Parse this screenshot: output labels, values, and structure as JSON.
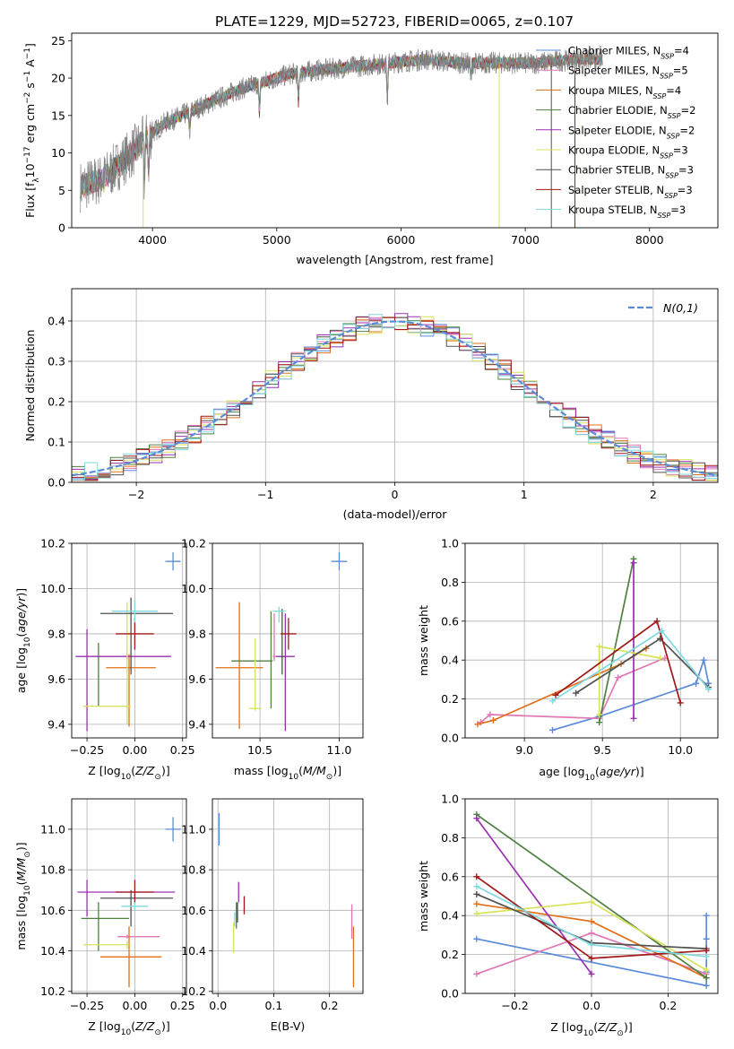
{
  "figure_title": "PLATE=1229, MJD=52723, FIBERID=0065, z=0.107",
  "palette": {
    "chab_miles": "#5b8bd8",
    "salp_miles": "#e078b4",
    "krou_miles": "#e0701a",
    "chab_elodie": "#4e8040",
    "salp_elodie": "#9a30b0",
    "krou_elodie": "#d8e25a",
    "chab_stelib": "#505050",
    "salp_stelib": "#a01818",
    "krou_stelib": "#80d8e0",
    "spectrum": "#808080",
    "normal": "#5b8bd8",
    "grid": "#b0b0b0"
  },
  "chart_data": [
    {
      "id": "spectrum",
      "type": "line",
      "xlabel": "wavelength [Angstrom, rest frame]",
      "ylabel": "Flux [f_λ 10^-17 erg cm^-2 s^-1 A^-1]",
      "xlim": [
        3350,
        8550
      ],
      "ylim": [
        0,
        26
      ],
      "xticks": [
        4000,
        5000,
        6000,
        7000,
        8000
      ],
      "yticks": [
        0,
        5,
        10,
        15,
        20,
        25
      ],
      "grid": false,
      "legend_position": "right",
      "continuum_knots": {
        "x": [
          3420,
          3600,
          3800,
          3950,
          4100,
          4300,
          4500,
          4700,
          4900,
          5100,
          5300,
          5600,
          5900,
          6200,
          6500,
          6800,
          7100,
          7400,
          7600
        ],
        "y": [
          5.5,
          6.5,
          9.5,
          12,
          14,
          15.5,
          17,
          18.5,
          19.5,
          20.5,
          21,
          21.5,
          22,
          22.5,
          22,
          22,
          22,
          22.5,
          22.5
        ]
      },
      "absorption_features": [
        {
          "wavelength": 3934,
          "depth": 6
        },
        {
          "wavelength": 3969,
          "depth": 5
        },
        {
          "wavelength": 4300,
          "depth": 3
        },
        {
          "wavelength": 4861,
          "depth": 4
        },
        {
          "wavelength": 5175,
          "depth": 4
        },
        {
          "wavelength": 5890,
          "depth": 5
        },
        {
          "wavelength": 6563,
          "depth": 2
        }
      ],
      "model_dropouts": [
        {
          "wavelength": 3925,
          "series": "Kroupa ELODIE, N_SSP=3"
        },
        {
          "wavelength": 6790,
          "series": "Kroupa ELODIE, N_SSP=3"
        },
        {
          "wavelength": 7210,
          "series": "Chabrier STELIB, N_SSP=3"
        },
        {
          "wavelength": 7400,
          "series": "Salpeter STELIB, N_SSP=3"
        }
      ],
      "legend": [
        {
          "label": "Chabrier MILES, N_SSP=4",
          "color": "#5b8bd8"
        },
        {
          "label": "Salpeter MILES, N_SSP=5",
          "color": "#e078b4"
        },
        {
          "label": "Kroupa MILES, N_SSP=4",
          "color": "#e0701a"
        },
        {
          "label": "Chabrier ELODIE, N_SSP=2",
          "color": "#4e8040"
        },
        {
          "label": "Salpeter ELODIE, N_SSP=2",
          "color": "#9a30b0"
        },
        {
          "label": "Kroupa ELODIE, N_SSP=3",
          "color": "#d8e25a"
        },
        {
          "label": "Chabrier STELIB, N_SSP=3",
          "color": "#505050"
        },
        {
          "label": "Salpeter STELIB, N_SSP=3",
          "color": "#a01818"
        },
        {
          "label": "Kroupa STELIB, N_SSP=3",
          "color": "#80d8e0"
        }
      ]
    },
    {
      "id": "residuals",
      "type": "histogram",
      "xlabel": "(data-model)/error",
      "ylabel": "Normed distribution",
      "xlim": [
        -2.5,
        2.5
      ],
      "ylim": [
        0,
        0.48
      ],
      "xticks": [
        -2,
        -1,
        0,
        1,
        2
      ],
      "yticks": [
        0.0,
        0.1,
        0.2,
        0.3,
        0.4
      ],
      "grid": true,
      "bin_width": 0.1,
      "legend": "N(0,1)",
      "legend_position": "top-right"
    },
    {
      "id": "age_vs_Z",
      "type": "errorbar",
      "xlabel": "Z [log10(Z/Z⊙)]",
      "ylabel": "age [log10(age/yr)]",
      "xlim": [
        -0.33,
        0.27
      ],
      "ylim": [
        9.34,
        10.2
      ],
      "xticks": [
        -0.25,
        0.0,
        0.25
      ],
      "yticks": [
        9.4,
        9.6,
        9.8,
        10.0,
        10.2
      ],
      "grid": true,
      "points": [
        {
          "color": "#5b8bd8",
          "x": 0.2,
          "y": 10.12,
          "xerr": [
            0.04,
            0.04
          ],
          "yerr": [
            0.04,
            0.04
          ]
        },
        {
          "color": "#e078b4",
          "x": -0.04,
          "y": 9.7,
          "xerr": [
            0.01,
            0.01
          ],
          "yerr": [
            0.02,
            0.02
          ]
        },
        {
          "color": "#e0701a",
          "x": -0.03,
          "y": 9.65,
          "xerr": [
            0.12,
            0.14
          ],
          "yerr": [
            0.26,
            0.06
          ]
        },
        {
          "color": "#4e8040",
          "x": -0.19,
          "y": 9.7,
          "xerr": [
            0.01,
            0.01
          ],
          "yerr": [
            0.22,
            0.06
          ]
        },
        {
          "color": "#9a30b0",
          "x": -0.25,
          "y": 9.7,
          "xerr": [
            0.06,
            0.44
          ],
          "yerr": [
            0.33,
            0.12
          ]
        },
        {
          "color": "#d8e25a",
          "x": -0.04,
          "y": 9.48,
          "xerr": [
            0.23,
            0.02
          ],
          "yerr": [
            0.08,
            0.46
          ]
        },
        {
          "color": "#505050",
          "x": -0.02,
          "y": 9.89,
          "xerr": [
            0.16,
            0.22
          ],
          "yerr": [
            0.27,
            0.07
          ]
        },
        {
          "color": "#a01818",
          "x": 0.0,
          "y": 9.8,
          "xerr": [
            0.1,
            0.1
          ],
          "yerr": [
            0.07,
            0.07
          ]
        },
        {
          "color": "#80d8e0",
          "x": 0.0,
          "y": 9.9,
          "xerr": [
            0.12,
            0.12
          ],
          "yerr": [
            0.05,
            0.05
          ]
        }
      ]
    },
    {
      "id": "age_vs_mass",
      "type": "errorbar",
      "xlabel": "mass [log10(M/M⊙)]",
      "ylabel": "",
      "xlim": [
        10.2,
        11.15
      ],
      "ylim": [
        9.34,
        10.2
      ],
      "xticks": [
        10.5,
        11.0
      ],
      "yticks": [
        9.4,
        9.6,
        9.8,
        10.0,
        10.2
      ],
      "grid": true,
      "points": [
        {
          "color": "#5b8bd8",
          "x": 11.0,
          "y": 10.12,
          "xerr": [
            0.05,
            0.05
          ],
          "yerr": [
            0.04,
            0.04
          ]
        },
        {
          "color": "#e078b4",
          "x": 10.59,
          "y": 9.7,
          "xerr": [
            0.01,
            0.01
          ],
          "yerr": [
            0.02,
            0.19
          ]
        },
        {
          "color": "#e0701a",
          "x": 10.37,
          "y": 9.65,
          "xerr": [
            0.15,
            0.15
          ],
          "yerr": [
            0.27,
            0.29
          ]
        },
        {
          "color": "#4e8040",
          "x": 10.57,
          "y": 9.68,
          "xerr": [
            0.25,
            0.01
          ],
          "yerr": [
            0.21,
            0.22
          ]
        },
        {
          "color": "#9a30b0",
          "x": 10.66,
          "y": 9.7,
          "xerr": [
            0.06,
            0.06
          ],
          "yerr": [
            0.33,
            0.19
          ]
        },
        {
          "color": "#d8e25a",
          "x": 10.47,
          "y": 9.47,
          "xerr": [
            0.04,
            0.04
          ],
          "yerr": [
            0.01,
            0.31
          ]
        },
        {
          "color": "#505050",
          "x": 10.64,
          "y": 9.7,
          "xerr": [
            0.01,
            0.01
          ],
          "yerr": [
            0.08,
            0.21
          ]
        },
        {
          "color": "#a01818",
          "x": 10.68,
          "y": 9.8,
          "xerr": [
            0.05,
            0.05
          ],
          "yerr": [
            0.07,
            0.07
          ]
        },
        {
          "color": "#80d8e0",
          "x": 10.62,
          "y": 9.9,
          "xerr": [
            0.04,
            0.04
          ],
          "yerr": [
            0.05,
            0.02
          ]
        }
      ]
    },
    {
      "id": "massweight_vs_age",
      "type": "line",
      "xlabel": "age [log10(age/yr)]",
      "ylabel": "mass weight",
      "xlim": [
        8.62,
        10.24
      ],
      "ylim": [
        0,
        1.0
      ],
      "xticks": [
        9.0,
        9.5,
        10.0
      ],
      "yticks": [
        0.0,
        0.2,
        0.4,
        0.6,
        0.8,
        1.0
      ],
      "grid": true,
      "series": [
        {
          "color": "#5b8bd8",
          "x": [
            9.18,
            9.48,
            10.1,
            10.15,
            10.18
          ],
          "y": [
            0.04,
            0.11,
            0.28,
            0.4,
            0.28
          ]
        },
        {
          "color": "#e078b4",
          "x": [
            8.72,
            8.78,
            9.48,
            9.6,
            9.9
          ],
          "y": [
            0.08,
            0.12,
            0.1,
            0.31,
            0.41
          ]
        },
        {
          "color": "#e0701a",
          "x": [
            8.7,
            8.8,
            9.62,
            9.78
          ],
          "y": [
            0.07,
            0.09,
            0.38,
            0.46
          ]
        },
        {
          "color": "#4e8040",
          "x": [
            9.48,
            9.7
          ],
          "y": [
            0.08,
            0.92
          ]
        },
        {
          "color": "#9a30b0",
          "x": [
            9.7,
            9.7
          ],
          "y": [
            0.1,
            0.9
          ]
        },
        {
          "color": "#d8e25a",
          "x": [
            9.48,
            9.48,
            9.87
          ],
          "y": [
            0.12,
            0.47,
            0.41
          ]
        },
        {
          "color": "#505050",
          "x": [
            9.33,
            9.87,
            10.18
          ],
          "y": [
            0.23,
            0.51,
            0.26
          ]
        },
        {
          "color": "#a01818",
          "x": [
            9.2,
            9.85,
            10.0
          ],
          "y": [
            0.22,
            0.6,
            0.18
          ]
        },
        {
          "color": "#80d8e0",
          "x": [
            9.18,
            9.88,
            10.18
          ],
          "y": [
            0.19,
            0.55,
            0.25
          ]
        }
      ]
    },
    {
      "id": "mass_vs_Z",
      "type": "errorbar",
      "xlabel": "Z [log10(Z/Z⊙)]",
      "ylabel": "mass [log10(M/M⊙)]",
      "xlim": [
        -0.33,
        0.27
      ],
      "ylim": [
        10.19,
        11.15
      ],
      "xticks": [
        -0.25,
        0.0,
        0.25
      ],
      "yticks": [
        10.2,
        10.4,
        10.6,
        10.8,
        11.0
      ],
      "grid": true,
      "points": [
        {
          "color": "#5b8bd8",
          "x": 0.2,
          "y": 11.0,
          "xerr": [
            0.04,
            0.04
          ],
          "yerr": [
            0.06,
            0.06
          ]
        },
        {
          "color": "#e078b4",
          "x": -0.04,
          "y": 10.47,
          "xerr": [
            0.05,
            0.17
          ],
          "yerr": [
            0.01,
            0.01
          ]
        },
        {
          "color": "#e0701a",
          "x": -0.03,
          "y": 10.37,
          "xerr": [
            0.15,
            0.17
          ],
          "yerr": [
            0.15,
            0.15
          ]
        },
        {
          "color": "#4e8040",
          "x": -0.19,
          "y": 10.56,
          "xerr": [
            0.09,
            0.16
          ],
          "yerr": [
            0.16,
            0.08
          ]
        },
        {
          "color": "#9a30b0",
          "x": -0.25,
          "y": 10.69,
          "xerr": [
            0.05,
            0.46
          ],
          "yerr": [
            0.12,
            0.06
          ]
        },
        {
          "color": "#d8e25a",
          "x": -0.04,
          "y": 10.43,
          "xerr": [
            0.23,
            0.02
          ],
          "yerr": [
            0.02,
            0.02
          ]
        },
        {
          "color": "#505050",
          "x": -0.02,
          "y": 10.66,
          "xerr": [
            0.16,
            0.22
          ],
          "yerr": [
            0.14,
            0.04
          ]
        },
        {
          "color": "#a01818",
          "x": 0.0,
          "y": 10.69,
          "xerr": [
            0.1,
            0.1
          ],
          "yerr": [
            0.06,
            0.06
          ]
        },
        {
          "color": "#80d8e0",
          "x": 0.0,
          "y": 10.62,
          "xerr": [
            0.07,
            0.07
          ],
          "yerr": [
            0.02,
            0.02
          ]
        }
      ]
    },
    {
      "id": "mass_vs_ebv",
      "type": "errorbar",
      "xlabel": "E(B-V)",
      "ylabel": "",
      "xlim": [
        -0.01,
        0.26
      ],
      "ylim": [
        10.19,
        11.15
      ],
      "xticks": [
        0.0,
        0.1,
        0.2
      ],
      "yticks": [
        10.2,
        10.4,
        10.6,
        10.8,
        11.0
      ],
      "grid": true,
      "points": [
        {
          "color": "#5b8bd8",
          "x": 0.002,
          "y": 11.0,
          "xerr": [
            0.0,
            0.0
          ],
          "yerr": [
            0.08,
            0.08
          ]
        },
        {
          "color": "#e078b4",
          "x": 0.24,
          "y": 10.47,
          "xerr": [
            0.0,
            0.0
          ],
          "yerr": [
            0.01,
            0.16
          ]
        },
        {
          "color": "#e0701a",
          "x": 0.243,
          "y": 10.37,
          "xerr": [
            0.0,
            0.0
          ],
          "yerr": [
            0.15,
            0.15
          ]
        },
        {
          "color": "#4e8040",
          "x": 0.033,
          "y": 10.56,
          "xerr": [
            0.0,
            0.0
          ],
          "yerr": [
            0.05,
            0.08
          ]
        },
        {
          "color": "#9a30b0",
          "x": 0.037,
          "y": 10.68,
          "xerr": [
            0.0,
            0.0
          ],
          "yerr": [
            0.04,
            0.06
          ]
        },
        {
          "color": "#d8e25a",
          "x": 0.028,
          "y": 10.45,
          "xerr": [
            0.0,
            0.0
          ],
          "yerr": [
            0.06,
            0.09
          ]
        },
        {
          "color": "#505050",
          "x": 0.035,
          "y": 10.6,
          "xerr": [
            0.0,
            0.0
          ],
          "yerr": [
            0.06,
            0.04
          ]
        },
        {
          "color": "#a01818",
          "x": 0.047,
          "y": 10.61,
          "xerr": [
            0.0,
            0.0
          ],
          "yerr": [
            0.03,
            0.06
          ]
        },
        {
          "color": "#80d8e0",
          "x": 0.03,
          "y": 10.55,
          "xerr": [
            0.0,
            0.0
          ],
          "yerr": [
            0.03,
            0.04
          ]
        }
      ]
    },
    {
      "id": "massweight_vs_Z",
      "type": "line",
      "xlabel": "Z [log10(Z/Z⊙)]",
      "ylabel": "mass weight",
      "xlim": [
        -0.33,
        0.33
      ],
      "ylim": [
        0,
        1.0
      ],
      "xticks": [
        -0.2,
        0.0,
        0.2
      ],
      "yticks": [
        0.0,
        0.2,
        0.4,
        0.6,
        0.8,
        1.0
      ],
      "grid": true,
      "series": [
        {
          "color": "#5b8bd8",
          "x": [
            -0.3,
            0.3,
            0.3,
            0.3,
            0.3
          ],
          "y": [
            0.28,
            0.04,
            0.11,
            0.28,
            0.4
          ]
        },
        {
          "color": "#e078b4",
          "x": [
            -0.3,
            0.0,
            0.3
          ],
          "y": [
            0.1,
            0.31,
            0.1
          ]
        },
        {
          "color": "#e0701a",
          "x": [
            -0.3,
            0.0,
            0.3
          ],
          "y": [
            0.46,
            0.37,
            0.08
          ]
        },
        {
          "color": "#4e8040",
          "x": [
            -0.3,
            0.3
          ],
          "y": [
            0.92,
            0.08
          ]
        },
        {
          "color": "#9a30b0",
          "x": [
            -0.3,
            0.0
          ],
          "y": [
            0.9,
            0.1
          ]
        },
        {
          "color": "#d8e25a",
          "x": [
            -0.3,
            0.0,
            0.3
          ],
          "y": [
            0.41,
            0.47,
            0.12
          ]
        },
        {
          "color": "#505050",
          "x": [
            -0.3,
            0.0,
            0.3
          ],
          "y": [
            0.51,
            0.26,
            0.23
          ]
        },
        {
          "color": "#a01818",
          "x": [
            -0.3,
            0.0,
            0.3
          ],
          "y": [
            0.6,
            0.18,
            0.22
          ]
        },
        {
          "color": "#80d8e0",
          "x": [
            -0.3,
            0.0,
            0.3
          ],
          "y": [
            0.55,
            0.25,
            0.19
          ]
        }
      ]
    }
  ]
}
